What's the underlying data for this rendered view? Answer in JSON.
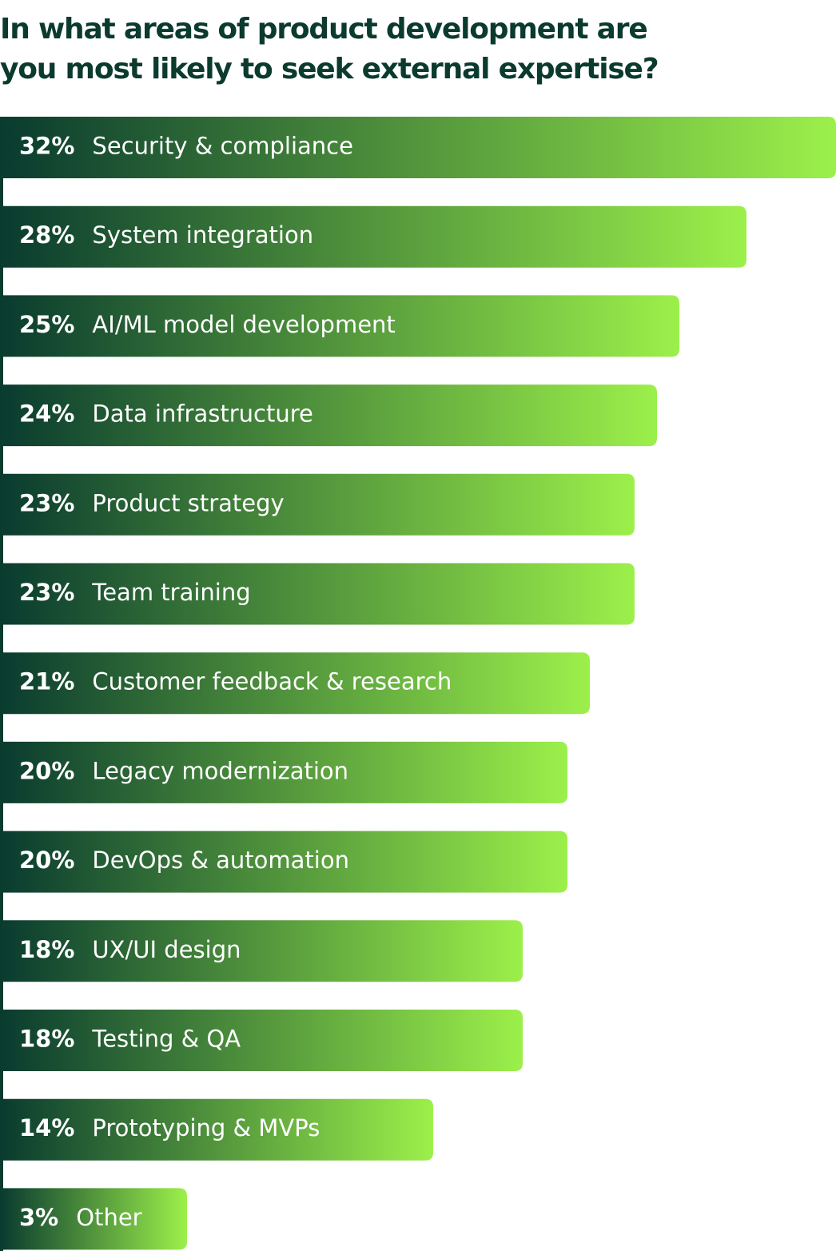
{
  "chart_data": {
    "type": "bar",
    "orientation": "horizontal",
    "title": "In what areas of product development are you most likely to seek external expertise?",
    "categories": [
      "Security & compliance",
      "System integration",
      "AI/ML model development",
      "Data infrastructure",
      "Product strategy",
      "Team training",
      "Customer feedback & research",
      "Legacy modernization",
      "DevOps & automation",
      "UX/UI design",
      "Testing & QA",
      "Prototyping & MVPs",
      "Other"
    ],
    "values": [
      32,
      28,
      25,
      24,
      23,
      23,
      21,
      20,
      20,
      18,
      18,
      14,
      3
    ],
    "value_labels": [
      "32%",
      "28%",
      "25%",
      "24%",
      "23%",
      "23%",
      "21%",
      "20%",
      "20%",
      "18%",
      "18%",
      "14%",
      "3%"
    ],
    "color_start": "#093b2f",
    "color_end": "#9cf04a"
  }
}
